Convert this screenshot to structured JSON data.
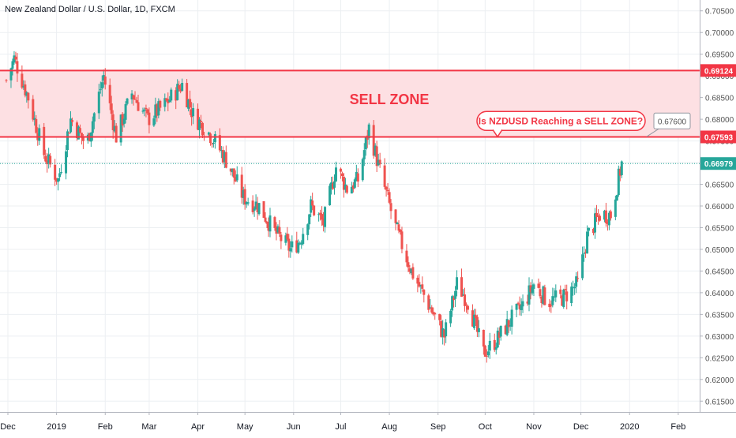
{
  "title": "New Zealand Dollar / U.S. Dollar, 1D, FXCM",
  "colors": {
    "up": "#26a69a",
    "down": "#ef5350",
    "zone_line": "#f23645",
    "zone_fill": "#fde0e3",
    "last_price": "#26a69a",
    "axis_text": "#555555",
    "grid": "#eceff2"
  },
  "chart_data": {
    "type": "candlestick",
    "ylim": [
      0.6125,
      0.7075
    ],
    "y_ticks": [
      "0.61500",
      "0.62000",
      "0.62500",
      "0.63000",
      "0.63500",
      "0.64000",
      "0.64500",
      "0.65000",
      "0.65500",
      "0.66000",
      "0.66500",
      "0.67000",
      "0.67500",
      "0.68000",
      "0.68500",
      "0.69000",
      "0.69500",
      "0.70000",
      "0.70500"
    ],
    "x_axis": [
      {
        "label": "Dec",
        "date": "2018-12-01"
      },
      {
        "label": "2019",
        "date": "2019-01-01"
      },
      {
        "label": "Feb",
        "date": "2019-02-01"
      },
      {
        "label": "Mar",
        "date": "2019-03-01"
      },
      {
        "label": "Apr",
        "date": "2019-04-01"
      },
      {
        "label": "May",
        "date": "2019-05-01"
      },
      {
        "label": "Jun",
        "date": "2019-06-01"
      },
      {
        "label": "Jul",
        "date": "2019-07-01"
      },
      {
        "label": "Aug",
        "date": "2019-08-01"
      },
      {
        "label": "Sep",
        "date": "2019-09-01"
      },
      {
        "label": "Oct",
        "date": "2019-10-01"
      },
      {
        "label": "Nov",
        "date": "2019-11-01"
      },
      {
        "label": "Dec",
        "date": "2019-12-01"
      },
      {
        "label": "2020",
        "date": "2020-01-01"
      },
      {
        "label": "Feb",
        "date": "2020-02-01"
      }
    ],
    "approx_close_path": [
      {
        "date": "2018-11-30",
        "close": 0.689
      },
      {
        "date": "2018-12-05",
        "close": 0.694
      },
      {
        "date": "2018-12-14",
        "close": 0.685
      },
      {
        "date": "2018-12-24",
        "close": 0.672
      },
      {
        "date": "2019-01-02",
        "close": 0.666
      },
      {
        "date": "2019-01-10",
        "close": 0.68
      },
      {
        "date": "2019-01-20",
        "close": 0.674
      },
      {
        "date": "2019-01-31",
        "close": 0.69
      },
      {
        "date": "2019-02-08",
        "close": 0.676
      },
      {
        "date": "2019-02-18",
        "close": 0.686
      },
      {
        "date": "2019-02-28",
        "close": 0.68
      },
      {
        "date": "2019-03-10",
        "close": 0.683
      },
      {
        "date": "2019-03-22",
        "close": 0.688
      },
      {
        "date": "2019-03-29",
        "close": 0.681
      },
      {
        "date": "2019-04-10",
        "close": 0.676
      },
      {
        "date": "2019-04-20",
        "close": 0.67
      },
      {
        "date": "2019-04-30",
        "close": 0.662
      },
      {
        "date": "2019-05-10",
        "close": 0.66
      },
      {
        "date": "2019-05-20",
        "close": 0.654
      },
      {
        "date": "2019-05-30",
        "close": 0.65
      },
      {
        "date": "2019-06-05",
        "close": 0.652
      },
      {
        "date": "2019-06-12",
        "close": 0.66
      },
      {
        "date": "2019-06-20",
        "close": 0.656
      },
      {
        "date": "2019-06-28",
        "close": 0.669
      },
      {
        "date": "2019-07-05",
        "close": 0.664
      },
      {
        "date": "2019-07-12",
        "close": 0.666
      },
      {
        "date": "2019-07-19",
        "close": 0.678
      },
      {
        "date": "2019-07-26",
        "close": 0.668
      },
      {
        "date": "2019-08-05",
        "close": 0.655
      },
      {
        "date": "2019-08-15",
        "close": 0.645
      },
      {
        "date": "2019-08-25",
        "close": 0.638
      },
      {
        "date": "2019-09-05",
        "close": 0.63
      },
      {
        "date": "2019-09-13",
        "close": 0.642
      },
      {
        "date": "2019-09-20",
        "close": 0.638
      },
      {
        "date": "2019-09-30",
        "close": 0.626
      },
      {
        "date": "2019-10-08",
        "close": 0.629
      },
      {
        "date": "2019-10-18",
        "close": 0.634
      },
      {
        "date": "2019-10-25",
        "close": 0.637
      },
      {
        "date": "2019-11-01",
        "close": 0.642
      },
      {
        "date": "2019-11-10",
        "close": 0.638
      },
      {
        "date": "2019-11-20",
        "close": 0.639
      },
      {
        "date": "2019-11-29",
        "close": 0.642
      },
      {
        "date": "2019-12-05",
        "close": 0.653
      },
      {
        "date": "2019-12-13",
        "close": 0.658
      },
      {
        "date": "2019-12-20",
        "close": 0.658
      },
      {
        "date": "2019-12-27",
        "close": 0.6698
      }
    ],
    "sell_zone": {
      "label": "SELL ZONE",
      "top": 0.69124,
      "bottom": 0.67593,
      "top_label": "0.69124",
      "bottom_label": "0.67593"
    },
    "last_price": {
      "value": 0.66979,
      "label": "0.66979"
    },
    "callout": {
      "text": "Is NZDUSD Reaching a SELL ZONE?",
      "price_label": "0.67600",
      "target": 0.676
    }
  }
}
